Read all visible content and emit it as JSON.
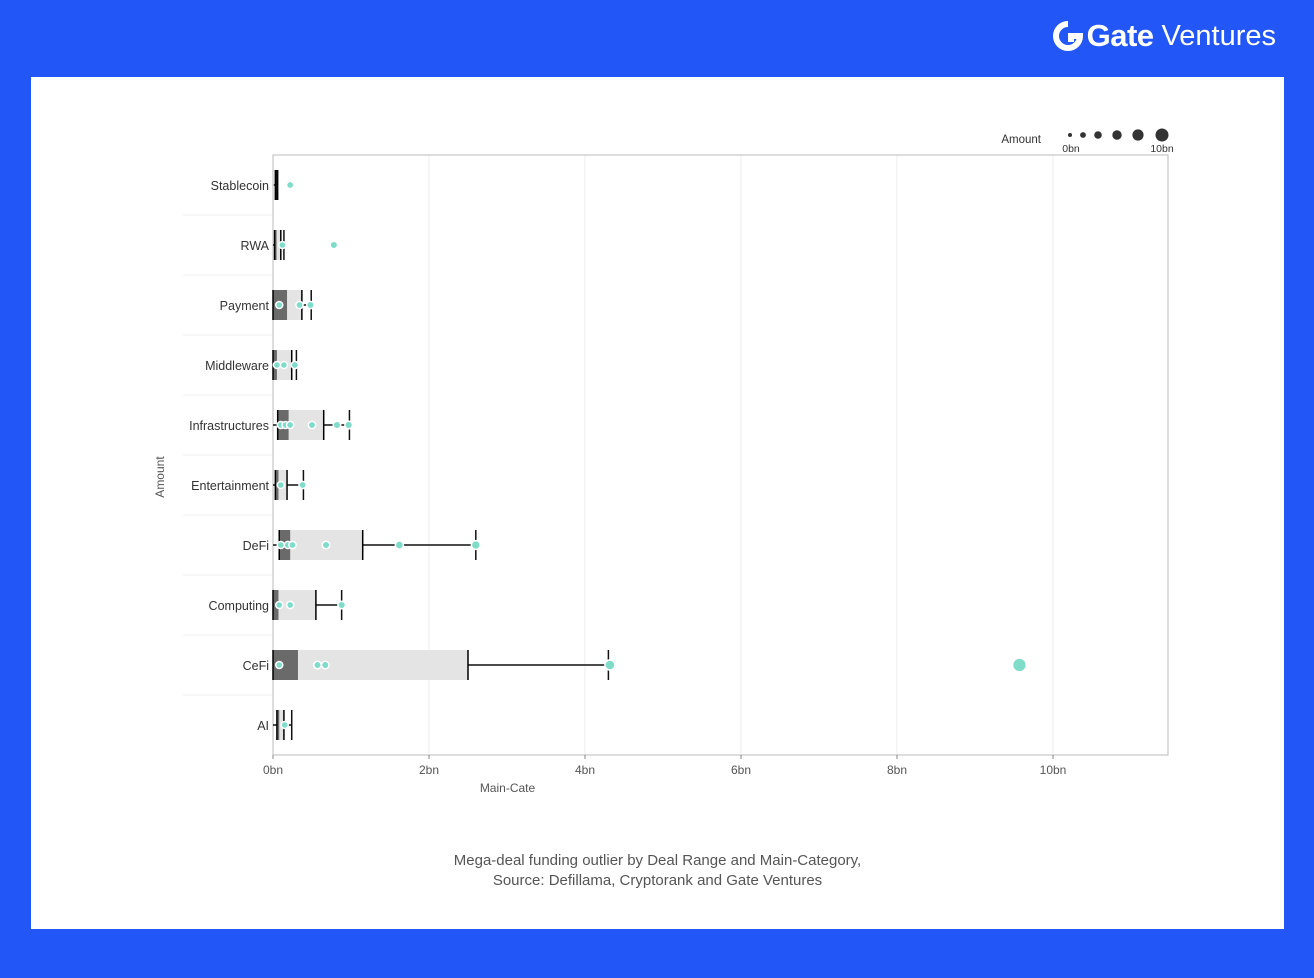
{
  "brand": {
    "bold": "Gate",
    "light": "Ventures",
    "logo_icon": "gate-logo-icon",
    "color": "#ffffff"
  },
  "page": {
    "background": "#2356f6",
    "panel_background": "#ffffff"
  },
  "caption": {
    "line1": "Mega-deal funding outlier by Deal Range and Main-Category,",
    "line2": "Source: Defillama, Cryptorank and Gate Ventures"
  },
  "chart_data": {
    "type": "boxplot-strip",
    "orientation": "horizontal",
    "xlabel": "Main-Cate",
    "ylabel": "Amount",
    "xlim": [
      0,
      11.5
    ],
    "x_unit_suffix": "bn",
    "x_ticks": [
      0,
      2,
      4,
      6,
      8,
      10
    ],
    "x_tick_labels": [
      "0bn",
      "2bn",
      "4bn",
      "6bn",
      "8bn",
      "10bn"
    ],
    "grid": "vertical",
    "categories": [
      "Stablecoin",
      "RWA",
      "Payment",
      "Middleware",
      "Infrastructures",
      "Entertainment",
      "DeFi",
      "Computing",
      "CeFi",
      "AI"
    ],
    "legend": {
      "title": "Amount",
      "placement": "top-right",
      "min_label": "0bn",
      "max_label": "10bn",
      "sizes": [
        0,
        2,
        4,
        6,
        8,
        10
      ]
    },
    "colors": {
      "point": "#7fdcc9",
      "point_stroke": "#ffffff",
      "box_inner": "#6a6a6a",
      "box_outer": "#e4e4e4",
      "whisker": "#111111",
      "grid": "#eeeeee",
      "axis": "#bbbbbb"
    },
    "boxes": [
      {
        "category": "Stablecoin",
        "min": 0.01,
        "q1": 0.03,
        "median": 0.04,
        "q3": 0.05,
        "max": 0.06,
        "inner_end": 0.03
      },
      {
        "category": "RWA",
        "min": 0.0,
        "q1": 0.02,
        "median": 0.04,
        "q3": 0.1,
        "max": 0.14,
        "inner_end": 0.03
      },
      {
        "category": "Payment",
        "min": 0.0,
        "q1": 0.0,
        "median": 0.18,
        "q3": 0.37,
        "max": 0.49,
        "inner_end": 0.18
      },
      {
        "category": "Middleware",
        "min": 0.0,
        "q1": 0.0,
        "median": 0.05,
        "q3": 0.24,
        "max": 0.3,
        "inner_end": 0.05
      },
      {
        "category": "Infrastructures",
        "min": 0.0,
        "q1": 0.06,
        "median": 0.2,
        "q3": 0.65,
        "max": 0.98,
        "inner_end": 0.2
      },
      {
        "category": "Entertainment",
        "min": 0.0,
        "q1": 0.03,
        "median": 0.07,
        "q3": 0.18,
        "max": 0.39,
        "inner_end": 0.07
      },
      {
        "category": "DeFi",
        "min": 0.0,
        "q1": 0.08,
        "median": 0.22,
        "q3": 1.15,
        "max": 2.6,
        "inner_end": 0.22
      },
      {
        "category": "Computing",
        "min": 0.0,
        "q1": 0.0,
        "median": 0.07,
        "q3": 0.55,
        "max": 0.88,
        "inner_end": 0.07
      },
      {
        "category": "CeFi",
        "min": 0.0,
        "q1": 0.0,
        "median": 0.32,
        "q3": 2.5,
        "max": 4.3,
        "inner_end": 0.32
      },
      {
        "category": "AI",
        "min": 0.0,
        "q1": 0.05,
        "median": 0.08,
        "q3": 0.14,
        "max": 0.24,
        "inner_end": 0.08
      }
    ],
    "points": [
      {
        "category": "Stablecoin",
        "x": 0.22
      },
      {
        "category": "RWA",
        "x": 0.12
      },
      {
        "category": "RWA",
        "x": 0.78
      },
      {
        "category": "Payment",
        "x": 0.08
      },
      {
        "category": "Payment",
        "x": 0.34
      },
      {
        "category": "Payment",
        "x": 0.48
      },
      {
        "category": "Middleware",
        "x": 0.05
      },
      {
        "category": "Middleware",
        "x": 0.14
      },
      {
        "category": "Middleware",
        "x": 0.28
      },
      {
        "category": "Infrastructures",
        "x": 0.1
      },
      {
        "category": "Infrastructures",
        "x": 0.16
      },
      {
        "category": "Infrastructures",
        "x": 0.22
      },
      {
        "category": "Infrastructures",
        "x": 0.5
      },
      {
        "category": "Infrastructures",
        "x": 0.82
      },
      {
        "category": "Infrastructures",
        "x": 0.97
      },
      {
        "category": "Entertainment",
        "x": 0.1
      },
      {
        "category": "Entertainment",
        "x": 0.38
      },
      {
        "category": "DeFi",
        "x": 0.1
      },
      {
        "category": "DeFi",
        "x": 0.19
      },
      {
        "category": "DeFi",
        "x": 0.25
      },
      {
        "category": "DeFi",
        "x": 0.68
      },
      {
        "category": "DeFi",
        "x": 1.62
      },
      {
        "category": "DeFi",
        "x": 2.6
      },
      {
        "category": "Computing",
        "x": 0.08
      },
      {
        "category": "Computing",
        "x": 0.22
      },
      {
        "category": "Computing",
        "x": 0.88
      },
      {
        "category": "CeFi",
        "x": 0.08
      },
      {
        "category": "CeFi",
        "x": 0.57
      },
      {
        "category": "CeFi",
        "x": 0.67
      },
      {
        "category": "CeFi",
        "x": 4.32
      },
      {
        "category": "CeFi",
        "x": 9.57
      },
      {
        "category": "AI",
        "x": 0.15
      }
    ]
  }
}
